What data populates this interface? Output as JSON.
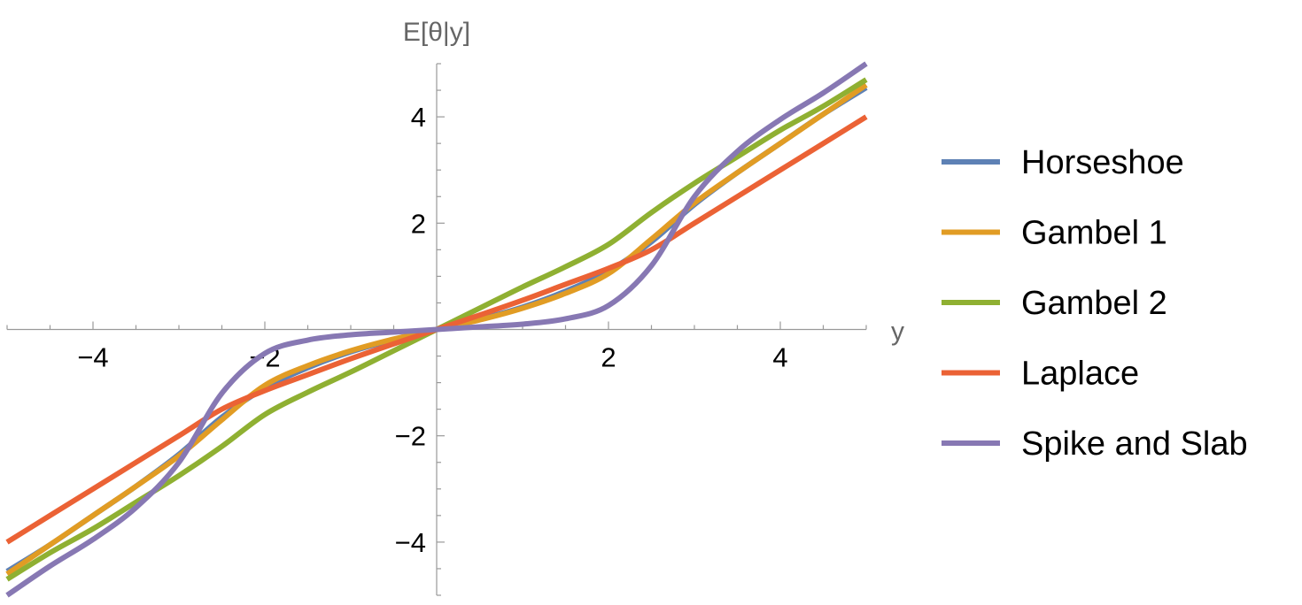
{
  "chart_data": {
    "type": "line",
    "title": "",
    "xlabel": "y",
    "ylabel": "E[θ|y]",
    "xlim": [
      -5,
      5
    ],
    "ylim": [
      -5,
      5
    ],
    "xticks": [
      -4,
      -2,
      2,
      4
    ],
    "yticks": [
      -4,
      -2,
      2,
      4
    ],
    "xtick_labels": [
      "−4",
      "−2",
      "2",
      "4"
    ],
    "ytick_labels": [
      "−4",
      "−2",
      "2",
      "4"
    ],
    "grid": false,
    "legend_position": "right",
    "x": [
      -5,
      -4.5,
      -4,
      -3.5,
      -3,
      -2.5,
      -2,
      -1.5,
      -1,
      -0.5,
      0,
      0.5,
      1,
      1.5,
      2,
      2.5,
      3,
      3.5,
      4,
      4.5,
      5
    ],
    "series": [
      {
        "name": "Horseshoe",
        "color": "#5E81B5",
        "values": [
          -4.55,
          -4.05,
          -3.5,
          -2.95,
          -2.35,
          -1.65,
          -1.1,
          -0.72,
          -0.42,
          -0.19,
          0,
          0.19,
          0.42,
          0.72,
          1.1,
          1.65,
          2.35,
          2.95,
          3.5,
          4.05,
          4.55
        ]
      },
      {
        "name": "Gambel 1",
        "color": "#E19C24",
        "values": [
          -4.6,
          -4.05,
          -3.5,
          -2.95,
          -2.38,
          -1.7,
          -1.05,
          -0.68,
          -0.4,
          -0.18,
          0,
          0.18,
          0.4,
          0.68,
          1.05,
          1.7,
          2.38,
          2.95,
          3.5,
          4.05,
          4.6
        ]
      },
      {
        "name": "Gambel 2",
        "color": "#8FB032",
        "values": [
          -4.7,
          -4.2,
          -3.75,
          -3.25,
          -2.75,
          -2.2,
          -1.6,
          -1.18,
          -0.8,
          -0.4,
          0,
          0.4,
          0.8,
          1.18,
          1.6,
          2.2,
          2.75,
          3.25,
          3.75,
          4.2,
          4.7
        ]
      },
      {
        "name": "Laplace",
        "color": "#EB6235",
        "values": [
          -4.0,
          -3.5,
          -3.0,
          -2.5,
          -2.0,
          -1.5,
          -1.15,
          -0.85,
          -0.55,
          -0.27,
          0,
          0.27,
          0.55,
          0.85,
          1.15,
          1.5,
          2.0,
          2.5,
          3.0,
          3.5,
          4.0
        ]
      },
      {
        "name": "Spike and Slab",
        "color": "#8778B3",
        "values": [
          -5.0,
          -4.45,
          -3.95,
          -3.35,
          -2.5,
          -1.2,
          -0.45,
          -0.2,
          -0.1,
          -0.05,
          0,
          0.05,
          0.1,
          0.2,
          0.45,
          1.2,
          2.5,
          3.35,
          3.95,
          4.45,
          5.0
        ]
      }
    ]
  }
}
